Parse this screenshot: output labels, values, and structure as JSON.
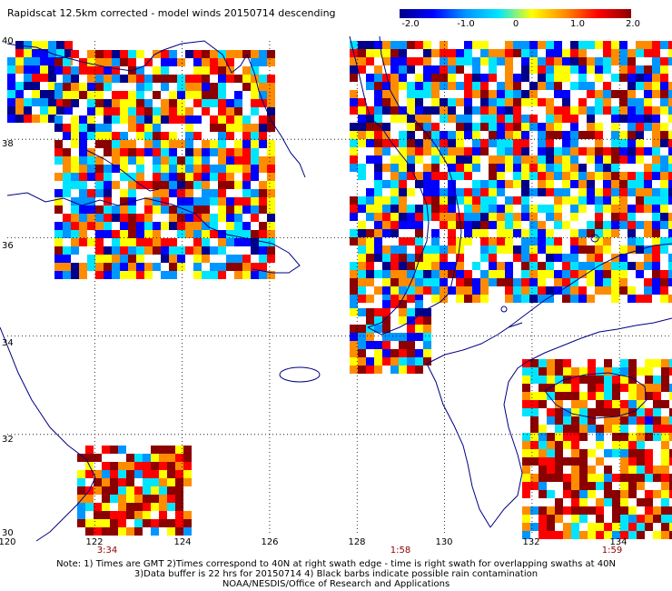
{
  "title": "Rapidscat 12.5km corrected - model winds 20150714 descending",
  "colorbar": {
    "ticks": [
      "-2.0",
      "-1.0",
      "0",
      "1.0",
      "2.0"
    ],
    "stops": [
      "#00008b",
      "#0000ff",
      "#0096ff",
      "#00e5ff",
      "#ffff00",
      "#ff8c00",
      "#ff0000",
      "#8b0000"
    ]
  },
  "map": {
    "lat_labels": [
      "40",
      "38",
      "36",
      "34",
      "32",
      "30"
    ],
    "lon_labels": [
      "120",
      "122",
      "124",
      "126",
      "128",
      "130",
      "132",
      "134"
    ],
    "time_labels": [
      "3:34",
      "1:58",
      "1:59"
    ],
    "coastline_color": "#000080",
    "land_outline": "coastline"
  },
  "notes": [
    "Note: 1) Times are GMT 2)Times correspond to 40N at right swath edge - time is right swath for overlapping swaths at 40N",
    "3)Data buffer is 22 hrs for 20150714 4) Black barbs indicate possible rain contamination",
    "NOAA/NESDIS/Office of Research and Applications"
  ]
}
